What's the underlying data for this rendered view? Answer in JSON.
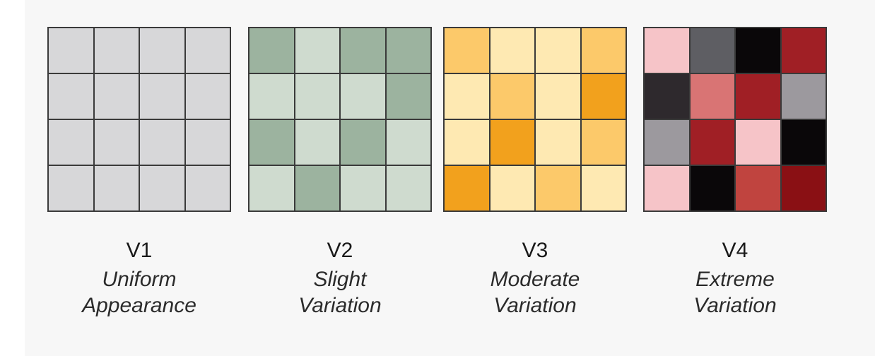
{
  "versions": [
    {
      "code": "V1",
      "line1": "Uniform",
      "line2": "Appearance",
      "colors": [
        "#d7d7d9",
        "#d7d7d9",
        "#d7d7d9",
        "#d7d7d9",
        "#d7d7d9",
        "#d7d7d9",
        "#d7d7d9",
        "#d7d7d9",
        "#d7d7d9",
        "#d7d7d9",
        "#d7d7d9",
        "#d7d7d9",
        "#d7d7d9",
        "#d7d7d9",
        "#d7d7d9",
        "#d7d7d9"
      ]
    },
    {
      "code": "V2",
      "line1": "Slight",
      "line2": "Variation",
      "colors": [
        "#9cb39f",
        "#cfdbcf",
        "#9cb39f",
        "#9cb39f",
        "#cfdbcf",
        "#cfdbcf",
        "#cfdbcf",
        "#9cb39f",
        "#9cb39f",
        "#cfdbcf",
        "#9cb39f",
        "#cfdbcf",
        "#cfdbcf",
        "#9cb39f",
        "#cfdbcf",
        "#cfdbcf"
      ]
    },
    {
      "code": "V3",
      "line1": "Moderate",
      "line2": "Variation",
      "colors": [
        "#fcc96a",
        "#fee9b2",
        "#fee9b2",
        "#fcc96a",
        "#fee9b2",
        "#fcc96a",
        "#fee9b2",
        "#f2a11d",
        "#fee9b2",
        "#f2a11d",
        "#fee9b2",
        "#fcc96a",
        "#f2a11d",
        "#fee9b2",
        "#fcc96a",
        "#fee9b2"
      ]
    },
    {
      "code": "V4",
      "line1": "Extreme",
      "line2": "Variation",
      "colors": [
        "#f6c4c8",
        "#5e5e63",
        "#0a0709",
        "#a01f25",
        "#2e292d",
        "#d97474",
        "#a01f25",
        "#9c999e",
        "#9c999e",
        "#a01f25",
        "#f6c4c8",
        "#0a0709",
        "#f6c4c8",
        "#0a0709",
        "#c0443f",
        "#8a1014"
      ]
    }
  ]
}
